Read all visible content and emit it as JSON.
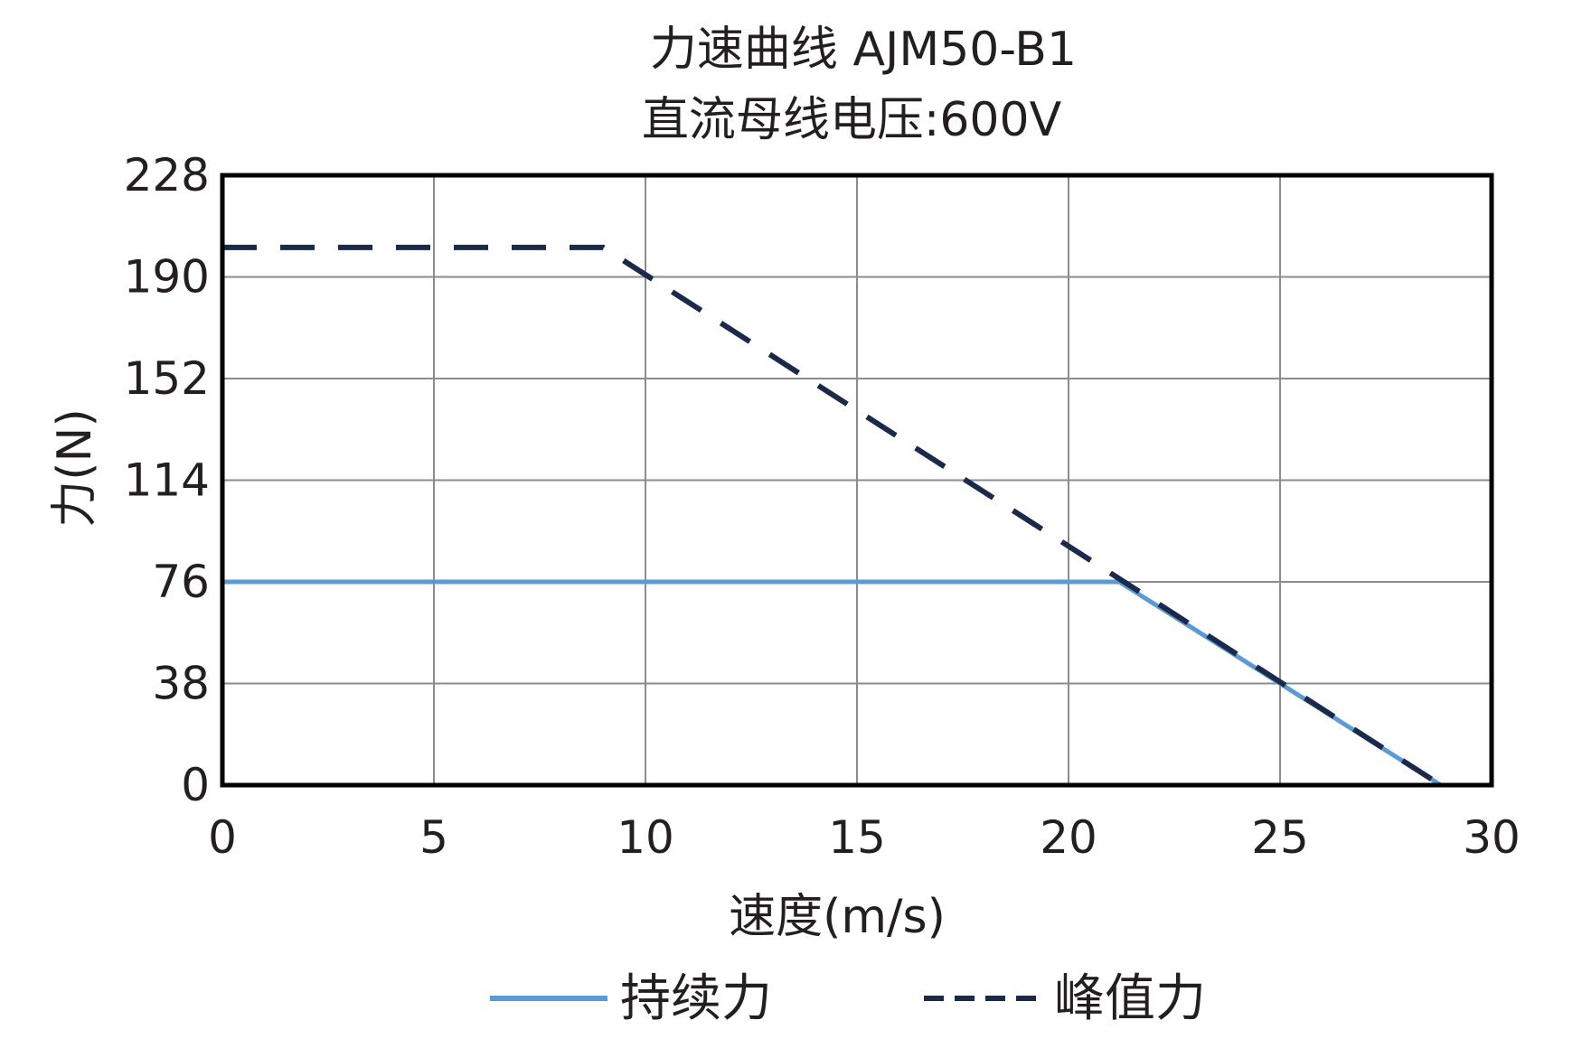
{
  "chart_data": {
    "type": "line",
    "title": "力速曲线 AJM50-B1",
    "subtitle": "直流母线电压:600V",
    "xlabel": "速度(m/s)",
    "ylabel": "力(N)",
    "xlim": [
      0,
      30
    ],
    "ylim": [
      0,
      228
    ],
    "x_ticks": [
      0,
      5,
      10,
      15,
      20,
      25,
      30
    ],
    "y_ticks": [
      0,
      38,
      76,
      114,
      152,
      190,
      228
    ],
    "grid": true,
    "legend_position": "bottom",
    "series": [
      {
        "name": "持续力",
        "color": "#5b9bd5",
        "line_style": "solid",
        "x": [
          0,
          21.2,
          28.8
        ],
        "y": [
          76,
          76,
          0
        ]
      },
      {
        "name": "峰值力",
        "color": "#1b2a4a",
        "line_style": "dashed",
        "x": [
          0,
          9.0,
          28.8
        ],
        "y": [
          201,
          201,
          0
        ]
      }
    ]
  }
}
